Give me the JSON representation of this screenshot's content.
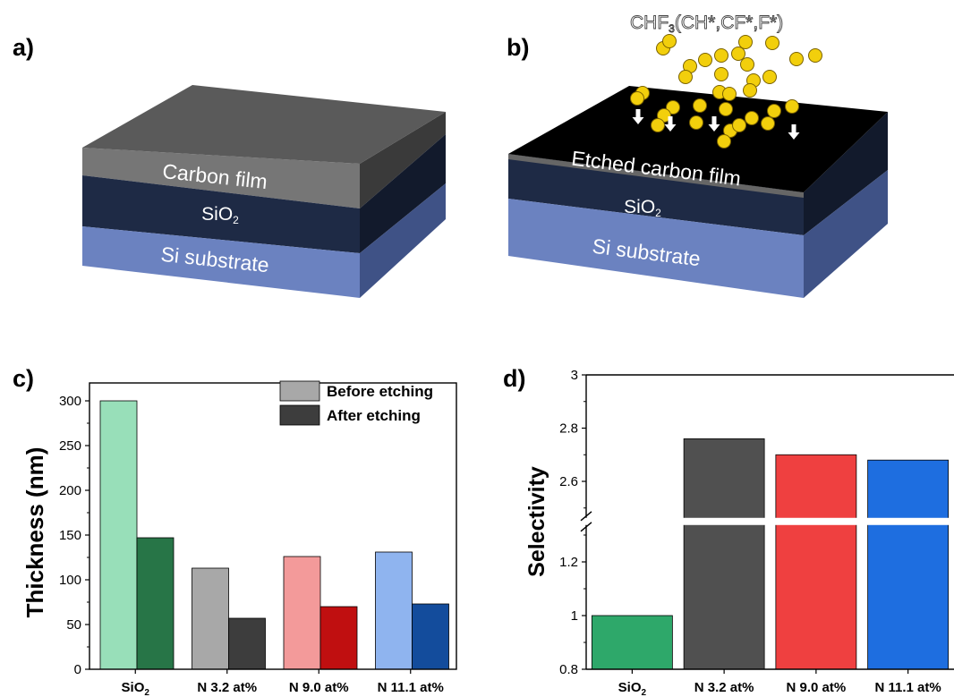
{
  "panel_labels": [
    "a)",
    "b)",
    "c)",
    "d)"
  ],
  "diagram_a": {
    "layers": {
      "carbon": "Carbon film",
      "sio2": "SiO",
      "sio2_sub": "2",
      "si": "Si substrate"
    }
  },
  "diagram_b": {
    "gas_main": "CHF",
    "gas_sub": "3",
    "gas_tail": "(CH*,CF*,F*)",
    "layers": {
      "carbon": "Etched carbon film",
      "sio2": "SiO",
      "sio2_sub": "2",
      "si": "Si substrate"
    }
  },
  "colors": {
    "carbon_top": "#5a5a5a",
    "carbon_side": "#767676",
    "sio2": "#1e2a45",
    "si": "#6b82c0",
    "etched_top": "#000000",
    "particle": "#f2cf0c"
  },
  "chart_data": [
    {
      "type": "bar",
      "ylabel": "Thickness (nm)",
      "ylim": [
        0,
        320
      ],
      "yticks": [
        0,
        50,
        100,
        150,
        200,
        250,
        300
      ],
      "categories": [
        "SiO2",
        "N 3.2 at%",
        "N 9.0 at%",
        "N 11.1 at%"
      ],
      "category_display": [
        {
          "main": "SiO",
          "sub": "2"
        },
        {
          "main": "N 3.2 at%",
          "sub": ""
        },
        {
          "main": "N 9.0 at%",
          "sub": ""
        },
        {
          "main": "N 11.1 at%",
          "sub": ""
        }
      ],
      "series": [
        {
          "name": "Before etching",
          "values": [
            300,
            113,
            126,
            131
          ],
          "colors": [
            "#98dfb9",
            "#a8a8a8",
            "#f39a9a",
            "#8fb4ef"
          ]
        },
        {
          "name": "After etching",
          "values": [
            147,
            57,
            70,
            73
          ],
          "colors": [
            "#277547",
            "#3d3d3d",
            "#c00f10",
            "#134c9c"
          ]
        }
      ],
      "legend": {
        "position": "top-right",
        "items": [
          {
            "label": "Before etching",
            "color": "#a8a8a8"
          },
          {
            "label": "After etching",
            "color": "#3d3d3d"
          }
        ]
      }
    },
    {
      "type": "bar",
      "ylabel": "Selectivity",
      "axis_break": [
        1.38,
        2.42
      ],
      "ylim": [
        0.8,
        3.0
      ],
      "yticks": [
        0.8,
        1.0,
        1.2,
        2.6,
        2.8,
        3.0
      ],
      "categories": [
        "SiO2",
        "N 3.2 at%",
        "N 9.0 at%",
        "N 11.1 at%"
      ],
      "category_display": [
        {
          "main": "SiO",
          "sub": "2"
        },
        {
          "main": "N 3.2 at%",
          "sub": ""
        },
        {
          "main": "N 9.0 at%",
          "sub": ""
        },
        {
          "main": "N 11.1 at%",
          "sub": ""
        }
      ],
      "values": [
        1.0,
        2.76,
        2.7,
        2.68
      ],
      "colors": [
        "#2ea86a",
        "#505050",
        "#ef4040",
        "#1e6ee0"
      ]
    }
  ]
}
